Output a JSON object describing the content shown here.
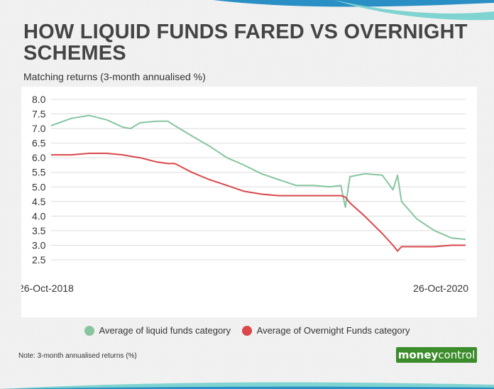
{
  "header": {
    "title": "HOW LIQUID FUNDS FARED VS OVERNIGHT SCHEMES",
    "subtitle": "Matching returns (3-month annualised %)"
  },
  "chart_data": {
    "type": "line",
    "title": "HOW LIQUID FUNDS FARED VS OVERNIGHT SCHEMES",
    "subtitle": "Matching returns (3-month annualised %)",
    "xlabel": "",
    "ylabel": "",
    "x_start_label": "26-Oct-2018",
    "x_end_label": "26-Oct-2020",
    "ylim": [
      2.5,
      8.0
    ],
    "yticks": [
      "8.0",
      "7.5",
      "7.0",
      "6.5",
      "6.0",
      "5.5",
      "5.0",
      "4.5",
      "4.0",
      "3.5",
      "3.0",
      "2.5"
    ],
    "grid": "horizontal",
    "legend_position": "bottom",
    "x": [
      "2018-10-26",
      "2018-12-01",
      "2019-01-01",
      "2019-02-01",
      "2019-03-01",
      "2019-03-15",
      "2019-04-01",
      "2019-05-01",
      "2019-05-20",
      "2019-06-01",
      "2019-07-01",
      "2019-08-01",
      "2019-09-01",
      "2019-10-01",
      "2019-11-01",
      "2019-12-01",
      "2020-01-01",
      "2020-02-01",
      "2020-03-01",
      "2020-03-20",
      "2020-03-28",
      "2020-04-05",
      "2020-05-01",
      "2020-06-01",
      "2020-06-20",
      "2020-06-28",
      "2020-07-05",
      "2020-08-01",
      "2020-09-01",
      "2020-10-01",
      "2020-10-26"
    ],
    "series": [
      {
        "name": "Average of liquid funds category",
        "color": "#86c59f",
        "values": [
          7.1,
          7.35,
          7.45,
          7.3,
          7.05,
          7.0,
          7.2,
          7.25,
          7.25,
          7.1,
          6.75,
          6.4,
          6.0,
          5.75,
          5.45,
          5.25,
          5.05,
          5.05,
          5.0,
          5.05,
          4.3,
          5.35,
          5.45,
          5.4,
          4.9,
          5.4,
          4.5,
          3.9,
          3.5,
          3.25,
          3.2
        ]
      },
      {
        "name": "Average of Overnight Funds category",
        "color": "#d9474b",
        "values": [
          6.1,
          6.1,
          6.15,
          6.15,
          6.1,
          6.05,
          6.0,
          5.85,
          5.8,
          5.8,
          5.5,
          5.25,
          5.05,
          4.85,
          4.75,
          4.7,
          4.7,
          4.7,
          4.7,
          4.7,
          4.65,
          4.45,
          4.0,
          3.4,
          3.0,
          2.8,
          2.95,
          2.95,
          2.95,
          3.0,
          3.0
        ]
      }
    ]
  },
  "legend": {
    "items": [
      {
        "label": "Average of liquid funds category",
        "color": "#86c59f"
      },
      {
        "label": "Average of Overnight Funds category",
        "color": "#d9474b"
      }
    ]
  },
  "footer": {
    "note": "Note: 3-month annualised returns (%)",
    "brand_part1": "money",
    "brand_part2": "control"
  }
}
